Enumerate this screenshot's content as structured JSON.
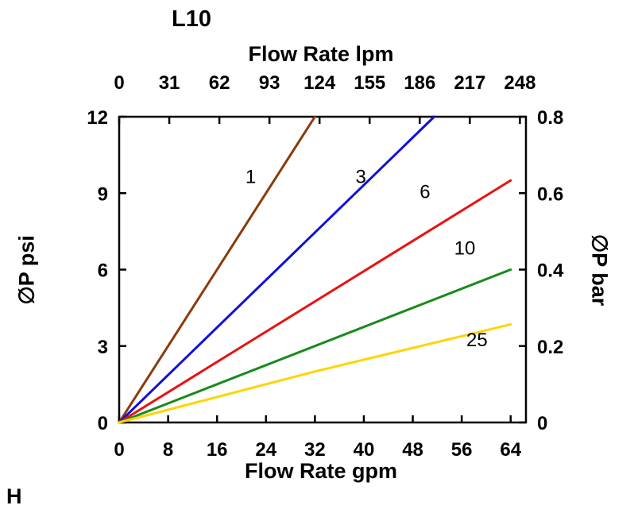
{
  "footer": {
    "corner_label": "H"
  },
  "chart_data": {
    "type": "line",
    "title": "L10",
    "xlabel": "Flow Rate gpm",
    "x2label": "Flow Rate lpm",
    "ylabel": "∅P psi",
    "y2label": "∅P bar",
    "xlim_gpm": [
      0,
      66.5
    ],
    "ylim_psi": [
      0,
      12
    ],
    "ylim_bar": [
      0,
      0.8
    ],
    "lpm_per_gpm": 3.78541,
    "grid": false,
    "legend": "inline-labels",
    "x_gpm_ticks": [
      0,
      8,
      16,
      24,
      32,
      40,
      48,
      56,
      64
    ],
    "x_lpm_ticks": [
      0,
      31,
      62,
      93,
      124,
      155,
      186,
      217,
      248
    ],
    "y_psi_ticks": [
      0,
      3,
      6,
      9,
      12
    ],
    "y_bar_ticks": [
      "0",
      "0.2",
      "0.4",
      "0.6",
      "0.8"
    ],
    "series": [
      {
        "name": "1",
        "color": "#8B3A0A",
        "points": [
          [
            0,
            0
          ],
          [
            32,
            12
          ]
        ],
        "label_pos": [
          21.5,
          9.4
        ]
      },
      {
        "name": "3",
        "color": "#1010D8",
        "points": [
          [
            0,
            0
          ],
          [
            51.5,
            12
          ]
        ],
        "label_pos": [
          39.5,
          9.4
        ]
      },
      {
        "name": "6",
        "color": "#E81212",
        "points": [
          [
            0,
            0
          ],
          [
            64,
            9.5
          ]
        ],
        "label_pos": [
          50.0,
          8.8
        ]
      },
      {
        "name": "10",
        "color": "#1A8A1A",
        "points": [
          [
            0,
            0
          ],
          [
            64,
            6.0
          ]
        ],
        "label_pos": [
          56.5,
          6.6
        ]
      },
      {
        "name": "25",
        "color": "#FFD400",
        "points": [
          [
            0,
            0
          ],
          [
            32,
            2.0
          ],
          [
            64,
            3.85
          ]
        ],
        "label_pos": [
          58.5,
          3.0
        ]
      }
    ]
  }
}
